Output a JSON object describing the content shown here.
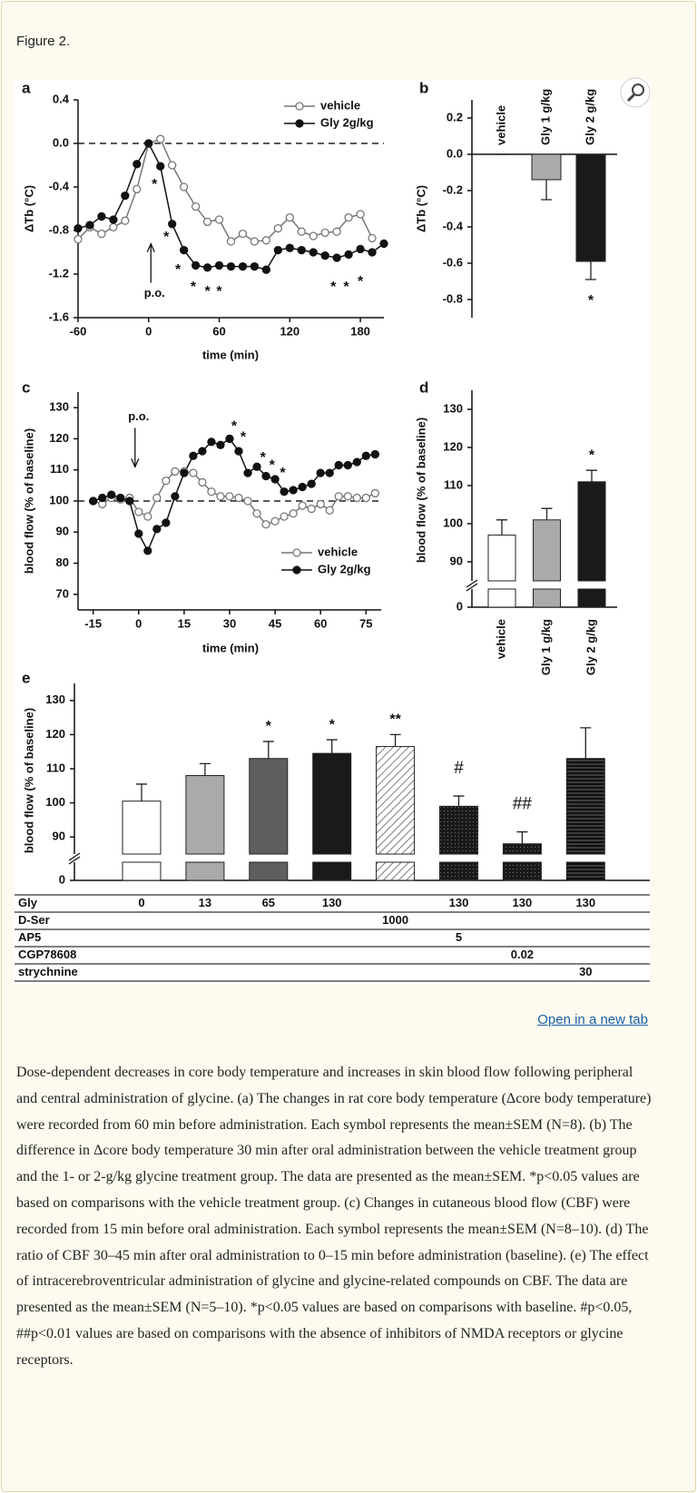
{
  "header": {
    "title": "Figure 2."
  },
  "chart_data": [
    {
      "type": "line",
      "label": "a",
      "xlabel": "time (min)",
      "ylabel": "ΔTb (°C)",
      "x": [
        -60,
        -50,
        -40,
        -30,
        -20,
        -10,
        0,
        10,
        20,
        30,
        40,
        50,
        60,
        70,
        80,
        90,
        100,
        110,
        120,
        130,
        140,
        150,
        160,
        170,
        180,
        190,
        200
      ],
      "xlim": [
        -60,
        200
      ],
      "xticks": [
        -60,
        0,
        60,
        120,
        180
      ],
      "ylim": [
        -1.6,
        0.4
      ],
      "yticks": [
        0.4,
        {
          "value": 0,
          "label": "0.0"
        },
        -0.4,
        -0.8,
        -1.2,
        -1.6
      ],
      "reference_line": 0,
      "legend": "upper right",
      "series": [
        {
          "name": "vehicle",
          "marker": "open",
          "color": "#777777",
          "values": [
            -0.88,
            -0.77,
            -0.83,
            -0.77,
            -0.71,
            -0.42,
            0,
            0.04,
            -0.2,
            -0.4,
            -0.58,
            -0.72,
            -0.7,
            -0.9,
            -0.83,
            -0.9,
            -0.89,
            -0.78,
            -0.68,
            -0.81,
            -0.85,
            -0.82,
            -0.81,
            -0.68,
            -0.65,
            -0.87,
            null
          ]
        },
        {
          "name": "Gly 2g/kg",
          "marker": "filled",
          "color": "#111111",
          "values": [
            -0.78,
            -0.75,
            -0.67,
            -0.7,
            -0.48,
            -0.19,
            0,
            -0.21,
            -0.74,
            -0.98,
            -1.12,
            -1.14,
            -1.12,
            -1.13,
            -1.13,
            -1.13,
            -1.16,
            -0.98,
            -0.96,
            -0.98,
            -1.0,
            -1.03,
            -1.05,
            -1.02,
            -0.97,
            -1.0,
            -0.92
          ]
        }
      ],
      "annotations": [
        {
          "text": "*",
          "x": 5,
          "y": -0.35
        },
        {
          "text": "*",
          "x": 15,
          "y": -0.83
        },
        {
          "text": "*",
          "x": 25,
          "y": -1.13
        },
        {
          "text": "*",
          "x": 38,
          "y": -1.29
        },
        {
          "text": "*",
          "x": 50,
          "y": -1.33
        },
        {
          "text": "*",
          "x": 60,
          "y": -1.33
        },
        {
          "text": "*",
          "x": 157,
          "y": -1.29
        },
        {
          "text": "*",
          "x": 168,
          "y": -1.29
        },
        {
          "text": "*",
          "x": 180,
          "y": -1.24
        },
        {
          "text": "p.o.",
          "x": 5,
          "y": -1.38,
          "arrow": "up"
        }
      ]
    },
    {
      "type": "bar",
      "label": "b",
      "ylabel": "ΔTb (°C)",
      "categories": [
        "vehicle",
        "Gly 1 g/kg",
        "Gly 2 g/kg"
      ],
      "label_position": "top",
      "values": [
        0,
        -0.14,
        -0.59
      ],
      "errors": [
        0,
        0.11,
        0.1
      ],
      "colors": [
        "#ffffff",
        "#aaaaaa",
        "#1a1a1a"
      ],
      "ylim": [
        -0.9,
        0.3
      ],
      "yticks": [
        0.2,
        {
          "value": 0,
          "label": "0.0"
        },
        -0.2,
        -0.4,
        -0.6,
        -0.8
      ],
      "bar_labels": [
        null,
        null,
        "*"
      ]
    },
    {
      "type": "line",
      "label": "c",
      "xlabel": "time (min)",
      "ylabel": "blood flow (% of baseline)",
      "x": [
        -15,
        -12,
        -9,
        -6,
        -3,
        0,
        3,
        6,
        9,
        12,
        15,
        18,
        21,
        24,
        27,
        30,
        33,
        36,
        39,
        42,
        45,
        48,
        51,
        54,
        57,
        60,
        63,
        66,
        69,
        72,
        75,
        78
      ],
      "xlim": [
        -20,
        80
      ],
      "xticks": [
        -15,
        0,
        15,
        30,
        45,
        60,
        75
      ],
      "ylim": [
        65,
        135
      ],
      "yticks": [
        70,
        80,
        90,
        100,
        110,
        120,
        130
      ],
      "reference_line": 100,
      "legend": "lower right",
      "series": [
        {
          "name": "vehicle",
          "marker": "open",
          "color": "#777777",
          "values": [
            100,
            99,
            101,
            100.5,
            101,
            96.5,
            95,
            101,
            106.5,
            109.5,
            109.5,
            109,
            106,
            103,
            101.5,
            101.5,
            101,
            100,
            96,
            92.5,
            93.5,
            95,
            96,
            98.5,
            97.5,
            99,
            97,
            101.5,
            101.5,
            101,
            101,
            102.5
          ]
        },
        {
          "name": "Gly 2g/kg",
          "marker": "filled",
          "color": "#111111",
          "values": [
            100,
            101,
            102,
            101,
            100,
            89.5,
            84,
            91,
            93,
            101.5,
            109,
            114.5,
            116,
            119,
            118,
            120,
            116,
            109,
            111,
            108,
            107,
            103,
            103.5,
            104.5,
            105.5,
            109,
            109,
            111.5,
            111.5,
            112.5,
            114.5,
            115
          ]
        }
      ],
      "annotations": [
        {
          "text": "*",
          "x": 31.5,
          "y": 125
        },
        {
          "text": "*",
          "x": 34.5,
          "y": 121.5
        },
        {
          "text": "*",
          "x": 41,
          "y": 115
        },
        {
          "text": "*",
          "x": 44,
          "y": 112.5
        },
        {
          "text": "*",
          "x": 47.5,
          "y": 110
        },
        {
          "text": "p.o.",
          "x": 0,
          "y": 127,
          "arrow": "down"
        }
      ]
    },
    {
      "type": "bar",
      "label": "d",
      "ylabel": "blood flow (% of baseline)",
      "categories": [
        "vehicle",
        "Gly 1 g/kg",
        "Gly 2 g/kg"
      ],
      "label_position": "bottom",
      "values": [
        97,
        101,
        111
      ],
      "errors": [
        4,
        3,
        3
      ],
      "colors": [
        "#ffffff",
        "#aaaaaa",
        "#1a1a1a"
      ],
      "ylim": [
        85,
        135
      ],
      "yticks": [
        0,
        90,
        100,
        110,
        120,
        130
      ],
      "axis_break": true,
      "bar_labels": [
        null,
        null,
        "*"
      ]
    },
    {
      "type": "bar",
      "label": "e",
      "ylabel": "blood flow (% of baseline)",
      "values": [
        100.5,
        108,
        113,
        114.5,
        116.5,
        99,
        88,
        113
      ],
      "errors": [
        5,
        3.5,
        5,
        4,
        3.5,
        3,
        3.5,
        9
      ],
      "colors": [
        "#ffffff",
        "#aaaaaa",
        "#5e5e5e",
        "#1a1a1a",
        "#ffffff",
        "#1a1a1a",
        "#1a1a1a",
        "#1a1a1a"
      ],
      "patterns": [
        null,
        null,
        null,
        null,
        "diagonal",
        "dots",
        "dots",
        "horizontal"
      ],
      "ylim": [
        85,
        135
      ],
      "yticks": [
        0,
        90,
        100,
        110,
        120,
        130
      ],
      "axis_break": true,
      "bar_labels": [
        null,
        null,
        "*",
        "*",
        "**",
        "#",
        "##",
        null
      ],
      "table": [
        {
          "name": "Gly",
          "values": [
            0,
            13,
            65,
            130,
            null,
            130,
            130,
            130
          ]
        },
        {
          "name": "D-Ser",
          "values": [
            null,
            null,
            null,
            null,
            1000,
            null,
            null,
            null
          ]
        },
        {
          "name": "AP5",
          "values": [
            null,
            null,
            null,
            null,
            null,
            5,
            null,
            null
          ]
        },
        {
          "name": "CGP78608",
          "values": [
            null,
            null,
            null,
            null,
            null,
            null,
            0.02,
            null
          ]
        },
        {
          "name": "strychnine",
          "values": [
            null,
            null,
            null,
            null,
            null,
            null,
            null,
            30
          ]
        }
      ]
    }
  ],
  "link": "Open in a new tab",
  "caption": "Dose-dependent decreases in core body temperature and increases in skin blood flow following peripheral and central administration of glycine. (a) The changes in rat core body temperature (Δcore body temperature) were recorded from 60 min before administration. Each symbol represents the mean±SEM (N=8). (b) The difference in Δcore body temperature 30 min after oral administration between the vehicle treatment group and the 1- or 2-g/kg glycine treatment group. The data are presented as the mean±SEM. *p<0.05 values are based on comparisons with the vehicle treatment group. (c) Changes in cutaneous blood flow (CBF) were recorded from 15 min before oral administration. Each symbol represents the mean±SEM (N=8–10). (d) The ratio of CBF 30–45 min after oral administration to 0–15 min before administration (baseline). (e) The effect of intracerebroventricular administration of glycine and glycine-related compounds on CBF. The data are presented as the mean±SEM (N=5–10). *p<0.05 values are based on comparisons with baseline. #p<0.05, ##p<0.01 values are based on comparisons with the absence of inhibitors of NMDA receptors or glycine receptors."
}
